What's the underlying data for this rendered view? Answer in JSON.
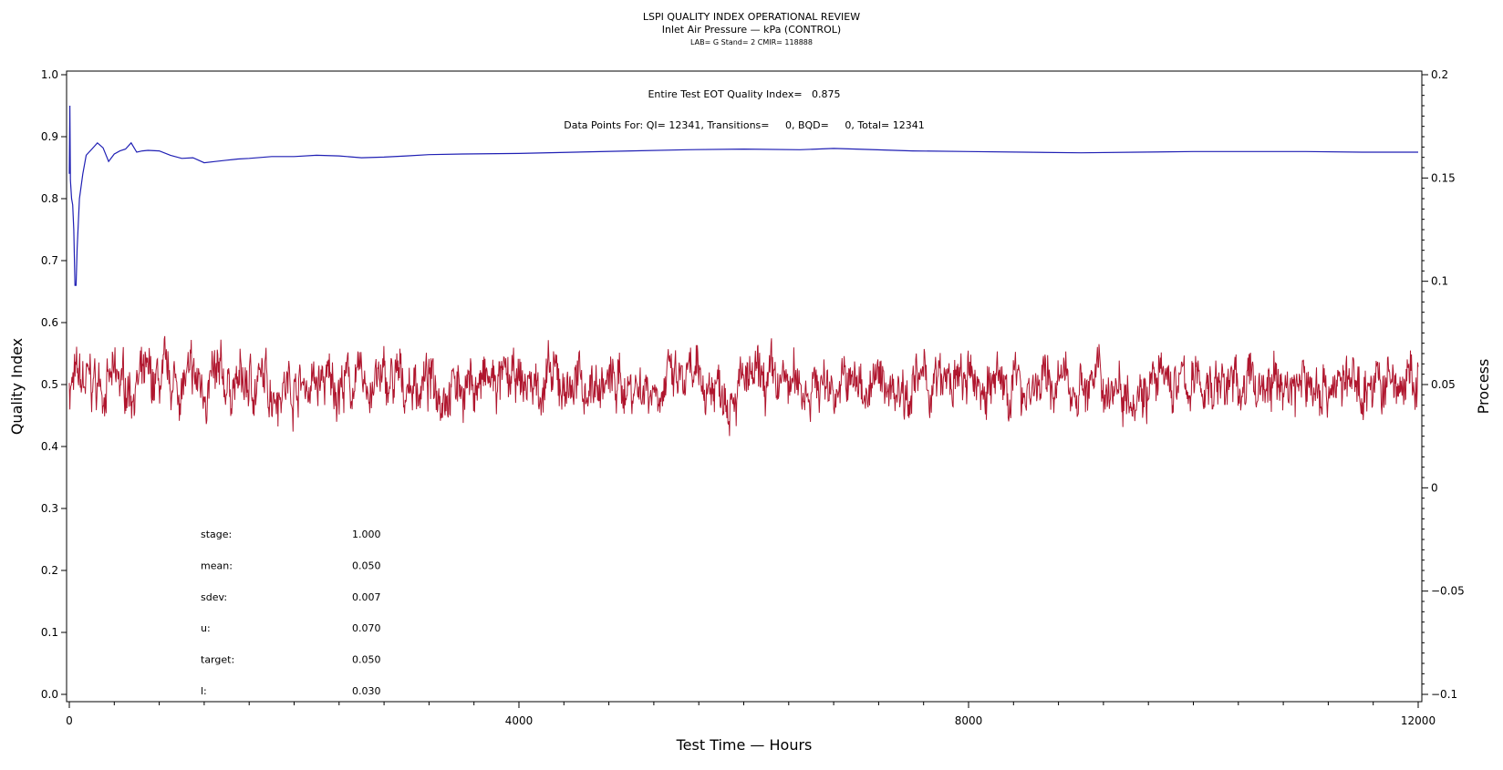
{
  "chart_data": {
    "type": "line",
    "title": "LSPI QUALITY INDEX OPERATIONAL REVIEW",
    "subtitle": "Inlet Air Pressure — kPa (CONTROL)",
    "subtitle2": "LAB= G Stand= 2 CMIR= 118888",
    "xlabel": "Test Time — Hours",
    "ylabel_left": "Quality Index",
    "ylabel_right": "Process",
    "xlim": [
      0,
      12000
    ],
    "ylim_left": [
      0.0,
      1.0
    ],
    "ylim_right": [
      -0.1,
      0.2
    ],
    "x_ticks": [
      0,
      4000,
      8000,
      12000
    ],
    "x_tick_labels": [
      "0",
      "4000",
      "8000",
      "12000"
    ],
    "y_left_ticks": [
      0.0,
      0.1,
      0.2,
      0.3,
      0.4,
      0.5,
      0.6,
      0.7,
      0.8,
      0.9,
      1.0
    ],
    "y_left_tick_labels": [
      "0.0",
      "0.1",
      "0.2",
      "0.3",
      "0.4",
      "0.5",
      "0.6",
      "0.7",
      "0.8",
      "0.9",
      "1.0"
    ],
    "y_right_ticks": [
      -0.1,
      -0.05,
      0,
      0.05,
      0.1,
      0.15,
      0.2
    ],
    "y_right_tick_labels": [
      "−0.1",
      "−0.05",
      "0",
      "0.05",
      "0.1",
      "0.15",
      "0.2"
    ],
    "annotation_eot": "Entire Test EOT Quality Index=   0.875",
    "annotation_points": "Data Points For: QI= 12341, Transitions=     0, BQD=     0, Total= 12341",
    "stats": [
      {
        "label": "stage:",
        "value": "1.000"
      },
      {
        "label": "mean:",
        "value": "0.050"
      },
      {
        "label": "sdev:",
        "value": "0.007"
      },
      {
        "label": "u:",
        "value": "0.070"
      },
      {
        "label": "target:",
        "value": "0.050"
      },
      {
        "label": "l:",
        "value": "0.030"
      }
    ],
    "grid": false,
    "series": [
      {
        "axis": "left",
        "color": "#1f1fb4",
        "x": [
          0,
          5,
          10,
          20,
          30,
          40,
          50,
          60,
          70,
          90,
          120,
          150,
          200,
          250,
          300,
          350,
          400,
          450,
          500,
          550,
          600,
          650,
          700,
          800,
          900,
          1000,
          1100,
          1150,
          1200,
          1300,
          1400,
          1500,
          1600,
          1800,
          2000,
          2200,
          2400,
          2600,
          2800,
          3000,
          3200,
          3500,
          4000,
          4500,
          5000,
          5500,
          6000,
          6500,
          6800,
          7000,
          7500,
          8000,
          8500,
          9000,
          9500,
          10000,
          10500,
          11000,
          11500,
          12000
        ],
        "y": [
          0.84,
          0.95,
          0.83,
          0.8,
          0.79,
          0.75,
          0.66,
          0.66,
          0.72,
          0.8,
          0.84,
          0.87,
          0.88,
          0.89,
          0.882,
          0.86,
          0.872,
          0.877,
          0.88,
          0.89,
          0.875,
          0.877,
          0.878,
          0.877,
          0.87,
          0.865,
          0.866,
          0.862,
          0.858,
          0.86,
          0.862,
          0.864,
          0.865,
          0.868,
          0.868,
          0.87,
          0.869,
          0.866,
          0.867,
          0.869,
          0.871,
          0.872,
          0.873,
          0.875,
          0.877,
          0.879,
          0.88,
          0.879,
          0.881,
          0.88,
          0.877,
          0.876,
          0.875,
          0.874,
          0.875,
          0.876,
          0.876,
          0.876,
          0.875,
          0.875
        ]
      },
      {
        "axis": "right",
        "color": "#b0162e",
        "mean": 0.05,
        "sdev": 0.007,
        "x_range": [
          0,
          12000
        ],
        "n_points": 12341,
        "min": 0.022,
        "max": 0.076,
        "note": "high-frequency process noise around the mean"
      }
    ]
  }
}
